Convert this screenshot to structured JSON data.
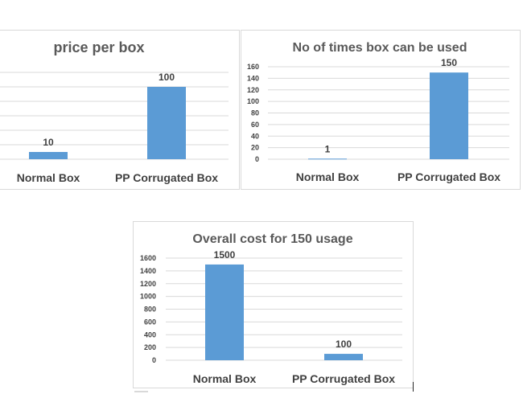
{
  "chart_data": [
    {
      "type": "bar",
      "title": "price per box",
      "categories": [
        "Normal Box",
        "PP Corrugated Box"
      ],
      "values": [
        10,
        100
      ],
      "ylim": [
        0,
        120
      ],
      "yticks": [],
      "grid": true,
      "bar_color": "#5B9BD5"
    },
    {
      "type": "bar",
      "title": "No of times box can be used",
      "categories": [
        "Normal Box",
        "PP Corrugated Box"
      ],
      "values": [
        1,
        150
      ],
      "ylim": [
        0,
        160
      ],
      "yticks": [
        0,
        20,
        40,
        60,
        80,
        100,
        120,
        140,
        160
      ],
      "grid": true,
      "bar_color": "#5B9BD5"
    },
    {
      "type": "bar",
      "title": "Overall cost for 150 usage",
      "categories": [
        "Normal Box",
        "PP Corrugated Box"
      ],
      "values": [
        1500,
        100
      ],
      "ylim": [
        0,
        1600
      ],
      "yticks": [
        0,
        200,
        400,
        600,
        800,
        1000,
        1200,
        1400,
        1600
      ],
      "grid": true,
      "bar_color": "#5B9BD5"
    }
  ]
}
